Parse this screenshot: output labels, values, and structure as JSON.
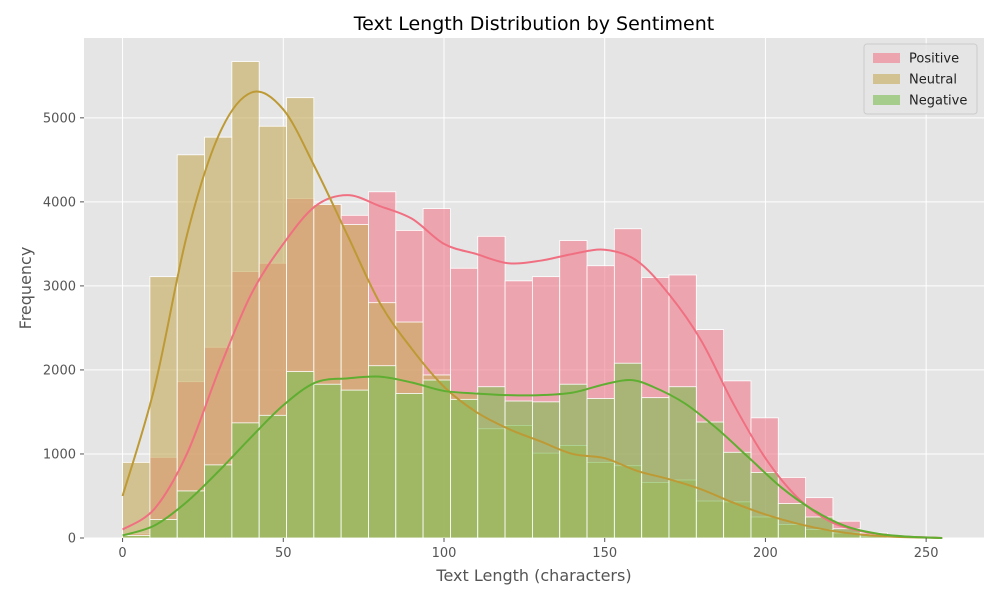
{
  "chart_data": {
    "type": "histogram",
    "title": "Text Length Distribution by Sentiment",
    "xlabel": "Text Length (characters)",
    "ylabel": "Frequency",
    "xlim": [
      -12,
      268
    ],
    "ylim": [
      0,
      5950
    ],
    "x_ticks": [
      0,
      50,
      100,
      150,
      200,
      250
    ],
    "y_ticks": [
      0,
      1000,
      2000,
      3000,
      4000,
      5000
    ],
    "grid": true,
    "legend_position": "top-right",
    "bin_edges": [
      0,
      8.5,
      17,
      25.5,
      34,
      42.5,
      51,
      59.5,
      68,
      76.5,
      85,
      93.5,
      102,
      110.5,
      119,
      127.5,
      136,
      144.5,
      153,
      161.5,
      170,
      178.5,
      187,
      195.5,
      204,
      212.5,
      221,
      229.5,
      238,
      246.5,
      255
    ],
    "series": [
      {
        "name": "Positive",
        "color": "#f07e8e",
        "kde_color": "#f07082",
        "values": [
          50,
          960,
          1860,
          2270,
          3170,
          3270,
          4040,
          3970,
          3840,
          4120,
          3660,
          3920,
          3210,
          3590,
          3060,
          3110,
          3540,
          3240,
          3680,
          3100,
          3130,
          2480,
          1870,
          1430,
          720,
          480,
          200,
          60,
          20,
          10
        ],
        "kde": [
          [
            0,
            100
          ],
          [
            10,
            350
          ],
          [
            20,
            1000
          ],
          [
            30,
            2000
          ],
          [
            40,
            2900
          ],
          [
            50,
            3500
          ],
          [
            60,
            3950
          ],
          [
            70,
            4080
          ],
          [
            80,
            3950
          ],
          [
            90,
            3800
          ],
          [
            100,
            3500
          ],
          [
            110,
            3380
          ],
          [
            120,
            3270
          ],
          [
            130,
            3300
          ],
          [
            140,
            3380
          ],
          [
            150,
            3430
          ],
          [
            160,
            3300
          ],
          [
            170,
            2900
          ],
          [
            180,
            2350
          ],
          [
            190,
            1600
          ],
          [
            200,
            950
          ],
          [
            210,
            480
          ],
          [
            220,
            200
          ],
          [
            230,
            80
          ],
          [
            240,
            25
          ],
          [
            255,
            0
          ]
        ]
      },
      {
        "name": "Neutral",
        "color": "#c8ac5e",
        "kde_color": "#bd9a35",
        "values": [
          900,
          3110,
          4560,
          4770,
          5670,
          4900,
          5240,
          3970,
          3730,
          2800,
          2570,
          1940,
          1730,
          1300,
          1340,
          1010,
          1100,
          900,
          860,
          660,
          690,
          440,
          430,
          250,
          160,
          100,
          60,
          20,
          10,
          5
        ],
        "kde": [
          [
            0,
            500
          ],
          [
            10,
            1800
          ],
          [
            20,
            3600
          ],
          [
            30,
            4800
          ],
          [
            40,
            5300
          ],
          [
            50,
            5100
          ],
          [
            60,
            4400
          ],
          [
            70,
            3600
          ],
          [
            80,
            2800
          ],
          [
            90,
            2250
          ],
          [
            100,
            1800
          ],
          [
            110,
            1500
          ],
          [
            120,
            1300
          ],
          [
            130,
            1150
          ],
          [
            140,
            1000
          ],
          [
            150,
            950
          ],
          [
            160,
            800
          ],
          [
            170,
            700
          ],
          [
            180,
            580
          ],
          [
            190,
            420
          ],
          [
            200,
            280
          ],
          [
            210,
            170
          ],
          [
            220,
            90
          ],
          [
            230,
            40
          ],
          [
            240,
            15
          ],
          [
            255,
            0
          ]
        ]
      },
      {
        "name": "Negative",
        "color": "#7fbf55",
        "kde_color": "#5fae32",
        "values": [
          30,
          220,
          560,
          870,
          1370,
          1460,
          1980,
          1830,
          1760,
          2050,
          1720,
          1880,
          1650,
          1800,
          1630,
          1620,
          1830,
          1660,
          2080,
          1670,
          1800,
          1380,
          1020,
          780,
          410,
          250,
          110,
          40,
          10,
          5
        ],
        "kde": [
          [
            0,
            30
          ],
          [
            10,
            150
          ],
          [
            20,
            430
          ],
          [
            30,
            800
          ],
          [
            40,
            1200
          ],
          [
            50,
            1580
          ],
          [
            60,
            1850
          ],
          [
            70,
            1900
          ],
          [
            80,
            1920
          ],
          [
            90,
            1850
          ],
          [
            100,
            1750
          ],
          [
            110,
            1720
          ],
          [
            120,
            1700
          ],
          [
            130,
            1700
          ],
          [
            140,
            1730
          ],
          [
            150,
            1830
          ],
          [
            158,
            1880
          ],
          [
            165,
            1800
          ],
          [
            175,
            1600
          ],
          [
            185,
            1300
          ],
          [
            195,
            950
          ],
          [
            205,
            600
          ],
          [
            215,
            330
          ],
          [
            225,
            140
          ],
          [
            235,
            50
          ],
          [
            245,
            15
          ],
          [
            255,
            0
          ]
        ]
      }
    ]
  }
}
